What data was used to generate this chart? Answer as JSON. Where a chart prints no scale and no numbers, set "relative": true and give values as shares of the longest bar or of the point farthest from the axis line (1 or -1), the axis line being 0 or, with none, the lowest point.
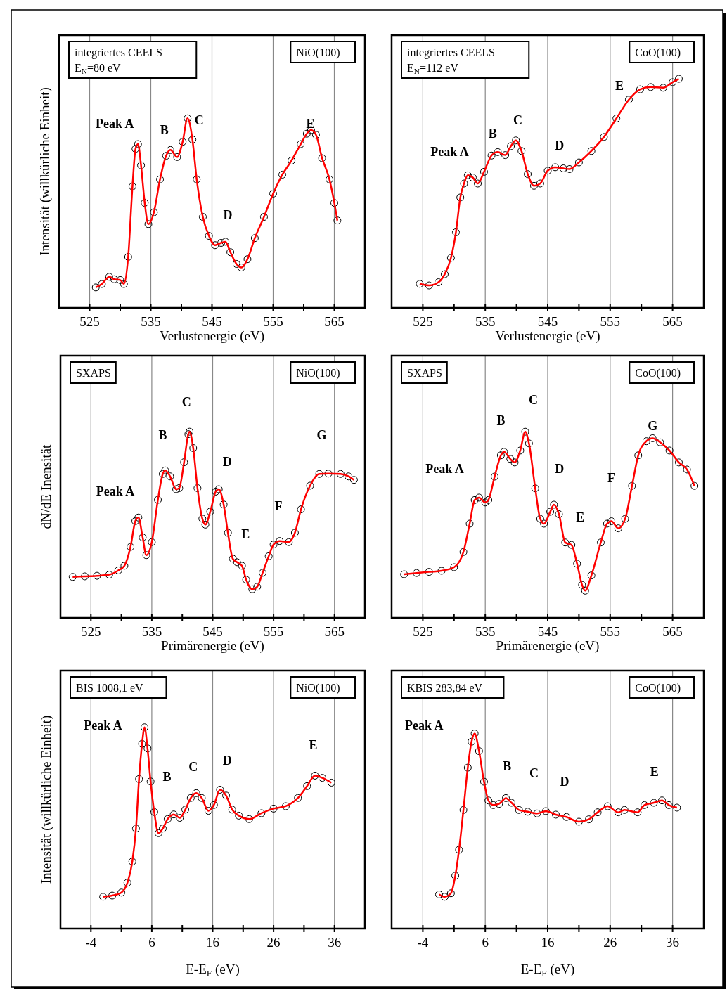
{
  "chart_data": [
    {
      "type": "line",
      "relative": true,
      "xlabel": "Verlustenergie (eV)",
      "ylabel": "Intensität (willkürliche Einheit)",
      "xlim": [
        520,
        570
      ],
      "xticks": [
        525,
        {
          "value": 530,
          "label": null
        },
        535,
        {
          "value": 540,
          "label": null
        },
        545,
        {
          "value": 550,
          "label": null
        },
        555,
        {
          "value": 560,
          "label": null
        },
        565
      ],
      "grid": "x",
      "tick_labels": "x",
      "x": [
        526,
        527,
        528.2,
        529,
        530,
        530.6,
        531.3,
        532,
        532.5,
        532.9,
        533.4,
        534,
        534.6,
        535.5,
        536.5,
        537.5,
        538.2,
        539.3,
        540.2,
        541,
        541.8,
        542.5,
        543.5,
        544.5,
        545.5,
        546.5,
        547.2,
        548,
        549,
        549.8,
        550.8,
        552,
        553.5,
        555,
        556.5,
        558,
        559.5,
        560.5,
        561.2,
        562,
        563,
        564.2,
        565,
        565.5
      ],
      "series": [
        {
          "type": "scatter",
          "marker": "circle",
          "color": "#000000",
          "values": [
            0.108,
            0.126,
            0.164,
            0.151,
            0.147,
            0.126,
            0.269,
            0.641,
            0.839,
            0.864,
            0.752,
            0.554,
            0.442,
            0.504,
            0.678,
            0.802,
            0.833,
            0.796,
            0.876,
            1.0,
            0.888,
            0.678,
            0.48,
            0.38,
            0.331,
            0.343,
            0.349,
            0.294,
            0.232,
            0.213,
            0.257,
            0.368,
            0.48,
            0.603,
            0.703,
            0.777,
            0.864,
            0.919,
            0.938,
            0.913,
            0.79,
            0.678,
            0.554,
            0.461
          ]
        },
        {
          "type": "line",
          "color": "#ff0000",
          "values": [
            0.108,
            0.126,
            0.164,
            0.151,
            0.147,
            0.126,
            0.269,
            0.641,
            0.839,
            0.864,
            0.752,
            0.554,
            0.442,
            0.504,
            0.678,
            0.802,
            0.833,
            0.796,
            0.876,
            1.0,
            0.888,
            0.678,
            0.48,
            0.38,
            0.331,
            0.343,
            0.349,
            0.294,
            0.232,
            0.213,
            0.257,
            0.368,
            0.48,
            0.603,
            0.703,
            0.777,
            0.864,
            0.919,
            0.938,
            0.913,
            0.79,
            0.678,
            0.554,
            0.461
          ]
        }
      ],
      "annotations": [
        "integriertes CEELS\nE$_{N}$=80 eV",
        "NiO(100)",
        "Peak A",
        "B",
        "C",
        "D",
        "E"
      ]
    },
    {
      "type": "line",
      "relative": true,
      "xlabel": "Verlustenergie (eV)",
      "xlim": [
        520,
        570
      ],
      "xticks": [
        525,
        {
          "value": 530,
          "label": null
        },
        535,
        {
          "value": 540,
          "label": null
        },
        545,
        {
          "value": 550,
          "label": null
        },
        555,
        {
          "value": 560,
          "label": null
        },
        565
      ],
      "grid": "x",
      "tick_labels": "x",
      "x": [
        524.5,
        526,
        527.5,
        528.5,
        529.5,
        530.3,
        531,
        531.6,
        532.2,
        533,
        533.8,
        534.8,
        536,
        537,
        538.2,
        539.1,
        539.9,
        540.8,
        541.8,
        542.8,
        543.8,
        545,
        546.2,
        547.5,
        548.5,
        550,
        552,
        554,
        556,
        558,
        559.8,
        561.5,
        563.5,
        565,
        566
      ],
      "series": [
        {
          "type": "scatter",
          "marker": "circle",
          "color": "#000000",
          "values": [
            0.105,
            0.098,
            0.112,
            0.147,
            0.218,
            0.33,
            0.482,
            0.543,
            0.579,
            0.569,
            0.543,
            0.594,
            0.665,
            0.68,
            0.667,
            0.706,
            0.731,
            0.685,
            0.584,
            0.533,
            0.543,
            0.599,
            0.614,
            0.609,
            0.606,
            0.635,
            0.685,
            0.746,
            0.827,
            0.909,
            0.954,
            0.964,
            0.961,
            0.985,
            1.0
          ]
        },
        {
          "type": "line",
          "color": "#ff0000",
          "values": [
            0.105,
            0.098,
            0.112,
            0.147,
            0.218,
            0.33,
            0.482,
            0.543,
            0.579,
            0.569,
            0.543,
            0.594,
            0.665,
            0.68,
            0.667,
            0.706,
            0.731,
            0.685,
            0.584,
            0.533,
            0.543,
            0.599,
            0.614,
            0.609,
            0.606,
            0.635,
            0.685,
            0.746,
            0.827,
            0.909,
            0.954,
            0.964,
            0.961,
            0.985,
            1.0
          ]
        }
      ],
      "annotations": [
        "integriertes CEELS\nE$_{N}$=112 eV",
        "CoO(100)",
        "Peak A",
        "B",
        "C",
        "D",
        "E"
      ]
    },
    {
      "type": "line",
      "relative": true,
      "xlabel": "Primärenergie (eV)",
      "ylabel": "dN/dE Inensität",
      "xlim": [
        520,
        570
      ],
      "xticks": [
        525,
        {
          "value": 530,
          "label": null
        },
        535,
        {
          "value": 540,
          "label": null
        },
        545,
        {
          "value": 550,
          "label": null
        },
        555,
        {
          "value": 560,
          "label": null
        },
        565
      ],
      "grid": "x",
      "tick_labels": "x",
      "x": [
        522,
        524,
        526,
        528,
        529.5,
        530.5,
        531.5,
        532.3,
        532.8,
        533.5,
        534.1,
        535,
        536,
        536.8,
        537.2,
        538,
        539,
        539.5,
        540.3,
        541,
        541.2,
        541.8,
        542.5,
        543.3,
        543.8,
        544.6,
        545.5,
        546,
        546.8,
        547.5,
        548.3,
        549,
        549.8,
        550.5,
        551.5,
        552.3,
        553.2,
        554.2,
        555,
        556,
        557.5,
        558.5,
        559.5,
        561,
        562.5,
        564,
        566,
        567.3,
        568.2
      ],
      "series": [
        {
          "type": "scatter",
          "marker": "circle",
          "color": "#000000",
          "values": [
            0.22,
            0.223,
            0.226,
            0.232,
            0.255,
            0.28,
            0.381,
            0.52,
            0.539,
            0.432,
            0.337,
            0.407,
            0.634,
            0.773,
            0.792,
            0.76,
            0.691,
            0.697,
            0.836,
            0.987,
            1.0,
            0.912,
            0.697,
            0.533,
            0.501,
            0.571,
            0.678,
            0.691,
            0.609,
            0.457,
            0.318,
            0.299,
            0.28,
            0.205,
            0.154,
            0.167,
            0.242,
            0.331,
            0.394,
            0.413,
            0.407,
            0.457,
            0.583,
            0.71,
            0.773,
            0.775,
            0.773,
            0.76,
            0.741
          ]
        },
        {
          "type": "line",
          "color": "#ff0000",
          "values": [
            0.22,
            0.223,
            0.226,
            0.232,
            0.255,
            0.28,
            0.381,
            0.52,
            0.539,
            0.432,
            0.337,
            0.407,
            0.634,
            0.773,
            0.792,
            0.76,
            0.691,
            0.697,
            0.836,
            0.987,
            1.0,
            0.912,
            0.697,
            0.533,
            0.501,
            0.571,
            0.678,
            0.691,
            0.609,
            0.457,
            0.318,
            0.299,
            0.28,
            0.205,
            0.154,
            0.167,
            0.242,
            0.331,
            0.394,
            0.413,
            0.407,
            0.457,
            0.583,
            0.71,
            0.773,
            0.775,
            0.773,
            0.76,
            0.741
          ]
        }
      ],
      "annotations": [
        "SXAPS",
        "NiO(100)",
        "Peak A",
        "B",
        "C",
        "D",
        "E",
        "F",
        "G"
      ]
    },
    {
      "type": "line",
      "relative": true,
      "xlabel": "Primärenergie (eV)",
      "xlim": [
        520,
        570
      ],
      "xticks": [
        525,
        {
          "value": 530,
          "label": null
        },
        535,
        {
          "value": 540,
          "label": null
        },
        545,
        {
          "value": 550,
          "label": null
        },
        555,
        {
          "value": 560,
          "label": null
        },
        565
      ],
      "grid": "x",
      "tick_labels": "x",
      "x": [
        522,
        524,
        526,
        528,
        530,
        531.5,
        532.5,
        533.3,
        534,
        535,
        535.5,
        536.5,
        537.5,
        538,
        539,
        539.7,
        540.6,
        541.4,
        542,
        543,
        543.8,
        544.4,
        545.4,
        546,
        546.8,
        547.8,
        548.8,
        549.7,
        550.5,
        551,
        552,
        553.5,
        554.5,
        555.2,
        556.3,
        557.4,
        558.5,
        559.5,
        560.8,
        561.8,
        563,
        564.5,
        566,
        567.3,
        568.5
      ],
      "series": [
        {
          "type": "scatter",
          "marker": "circle",
          "color": "#000000",
          "values": [
            0.234,
            0.241,
            0.247,
            0.253,
            0.272,
            0.354,
            0.506,
            0.633,
            0.646,
            0.62,
            0.633,
            0.759,
            0.873,
            0.892,
            0.854,
            0.835,
            0.899,
            1.0,
            0.937,
            0.696,
            0.532,
            0.506,
            0.57,
            0.608,
            0.557,
            0.405,
            0.392,
            0.291,
            0.177,
            0.146,
            0.228,
            0.405,
            0.506,
            0.519,
            0.481,
            0.532,
            0.709,
            0.873,
            0.949,
            0.965,
            0.943,
            0.899,
            0.835,
            0.797,
            0.709
          ]
        },
        {
          "type": "line",
          "color": "#ff0000",
          "values": [
            0.234,
            0.241,
            0.247,
            0.253,
            0.272,
            0.354,
            0.506,
            0.633,
            0.646,
            0.62,
            0.633,
            0.759,
            0.873,
            0.892,
            0.854,
            0.835,
            0.899,
            1.0,
            0.937,
            0.696,
            0.532,
            0.506,
            0.57,
            0.608,
            0.557,
            0.405,
            0.392,
            0.291,
            0.177,
            0.146,
            0.228,
            0.405,
            0.506,
            0.519,
            0.481,
            0.532,
            0.709,
            0.873,
            0.949,
            0.965,
            0.943,
            0.899,
            0.835,
            0.797,
            0.709
          ]
        }
      ],
      "annotations": [
        "SXAPS",
        "CoO(100)",
        "Peak A",
        "B",
        "C",
        "D",
        "E",
        "F",
        "G"
      ]
    },
    {
      "type": "line",
      "relative": true,
      "xlabel": "E-E$_{F}$ (eV)",
      "ylabel": "Intensität (willkürliche Einheit)",
      "xlim": [
        -9,
        41
      ],
      "xticks": [
        -4,
        {
          "value": 1,
          "label": null
        },
        6,
        {
          "value": 11,
          "label": null
        },
        16,
        {
          "value": 21,
          "label": null
        },
        26,
        {
          "value": 31,
          "label": null
        },
        36
      ],
      "grid": "x",
      "tick_labels": "x",
      "x": [
        -2,
        -0.5,
        1,
        2,
        2.8,
        3.4,
        3.9,
        4.4,
        4.8,
        5.3,
        5.8,
        6.4,
        7.1,
        7.8,
        8.6,
        9.6,
        10.6,
        11.5,
        12.4,
        13.3,
        14.2,
        15.3,
        16.2,
        17.2,
        18.2,
        19.2,
        20.3,
        22,
        24,
        26,
        28,
        30,
        31.5,
        32.8,
        34,
        35.5
      ],
      "series": [
        {
          "type": "scatter",
          "marker": "circle",
          "color": "#000000",
          "values": [
            0.158,
            0.164,
            0.179,
            0.228,
            0.333,
            0.497,
            0.743,
            0.918,
            1.0,
            0.895,
            0.731,
            0.579,
            0.474,
            0.497,
            0.544,
            0.567,
            0.55,
            0.591,
            0.649,
            0.673,
            0.649,
            0.585,
            0.614,
            0.69,
            0.661,
            0.591,
            0.561,
            0.544,
            0.573,
            0.596,
            0.608,
            0.649,
            0.708,
            0.76,
            0.749,
            0.725
          ]
        },
        {
          "type": "line",
          "color": "#ff0000",
          "values": [
            0.158,
            0.164,
            0.179,
            0.228,
            0.333,
            0.497,
            0.743,
            0.918,
            1.0,
            0.895,
            0.731,
            0.579,
            0.474,
            0.497,
            0.544,
            0.567,
            0.55,
            0.591,
            0.649,
            0.673,
            0.649,
            0.585,
            0.614,
            0.69,
            0.661,
            0.591,
            0.561,
            0.544,
            0.573,
            0.596,
            0.608,
            0.649,
            0.708,
            0.76,
            0.749,
            0.725
          ]
        }
      ],
      "annotations": [
        "BIS 1008,1 eV",
        "NiO(100)",
        "Peak A",
        "B",
        "C",
        "D",
        "E"
      ]
    },
    {
      "type": "line",
      "relative": true,
      "xlabel": "E-E$_{F}$ (eV)",
      "xlim": [
        -9,
        41
      ],
      "xticks": [
        -4,
        {
          "value": 1,
          "label": null
        },
        6,
        {
          "value": 11,
          "label": null
        },
        16,
        {
          "value": 21,
          "label": null
        },
        26,
        {
          "value": 31,
          "label": null
        },
        36
      ],
      "grid": "x",
      "tick_labels": "x",
      "x": [
        -1.4,
        -0.5,
        0.5,
        1.2,
        1.8,
        2.5,
        3.2,
        3.8,
        4.3,
        5,
        5.8,
        6.5,
        7.3,
        8.2,
        9.3,
        10.2,
        11.4,
        12.8,
        14.3,
        15.7,
        17.3,
        19,
        21,
        22.6,
        24,
        25.6,
        27.3,
        28.3,
        30.4,
        31.5,
        33,
        34.3,
        35.4,
        36.7
      ],
      "series": [
        {
          "type": "scatter",
          "marker": "circle",
          "color": "#000000",
          "values": [
            0.175,
            0.163,
            0.181,
            0.271,
            0.404,
            0.608,
            0.825,
            0.958,
            1.0,
            0.91,
            0.753,
            0.657,
            0.633,
            0.639,
            0.669,
            0.645,
            0.608,
            0.599,
            0.59,
            0.602,
            0.584,
            0.572,
            0.548,
            0.56,
            0.596,
            0.627,
            0.596,
            0.608,
            0.596,
            0.633,
            0.645,
            0.657,
            0.633,
            0.62
          ]
        },
        {
          "type": "line",
          "color": "#ff0000",
          "values": [
            0.175,
            0.163,
            0.181,
            0.271,
            0.404,
            0.608,
            0.825,
            0.958,
            1.0,
            0.91,
            0.753,
            0.657,
            0.633,
            0.639,
            0.669,
            0.645,
            0.608,
            0.599,
            0.59,
            0.602,
            0.584,
            0.572,
            0.548,
            0.56,
            0.596,
            0.627,
            0.596,
            0.608,
            0.596,
            0.633,
            0.645,
            0.657,
            0.633,
            0.62
          ]
        }
      ],
      "annotations": [
        "KBIS 283,84 eV",
        "CoO(100)",
        "Peak A",
        "B",
        "C",
        "D",
        "E"
      ]
    }
  ]
}
